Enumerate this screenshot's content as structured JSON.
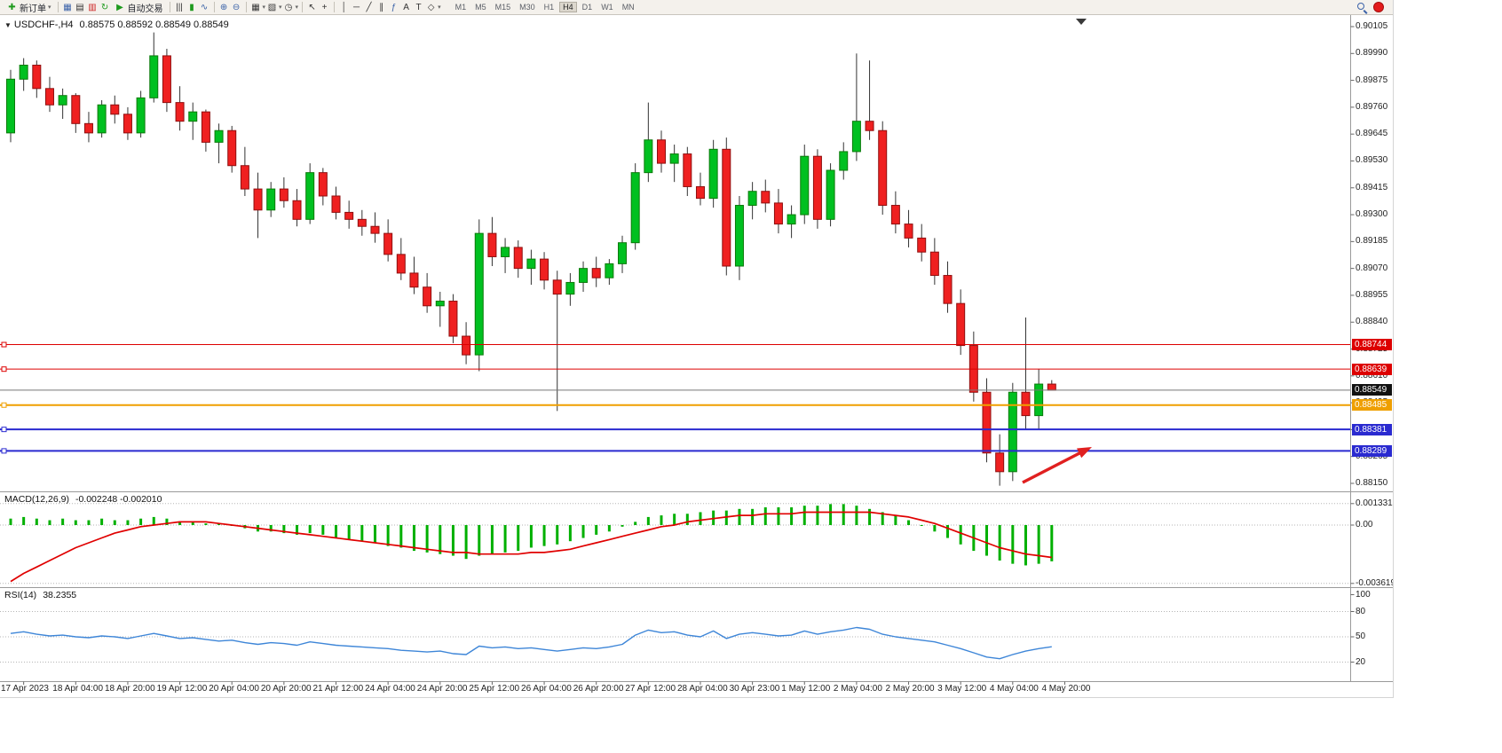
{
  "toolbar": {
    "new_order_label": "新订单",
    "auto_trading_label": "自动交易",
    "timeframes": [
      "M1",
      "M5",
      "M15",
      "M30",
      "H1",
      "H4",
      "D1",
      "W1",
      "MN"
    ],
    "active_timeframe": "H4",
    "icons": {
      "new_order": "✚",
      "dropdown": "▾",
      "charts": "▦",
      "profiles": "▤",
      "market_watch": "▥",
      "refresh": "↻",
      "play": "▶",
      "bar_chart": "|||",
      "candlestick": "▮",
      "line_chart": "∿",
      "zoom_in": "⊕",
      "zoom_out": "⊖",
      "tile_windows": "▦",
      "cascade_windows": "▧",
      "clock": "◷",
      "cursor": "↖",
      "crosshair": "+",
      "vertical_line": "│",
      "horizontal_line": "─",
      "trendline": "╱",
      "channel": "∥",
      "fibonacci": "ƒ",
      "text": "A",
      "text_label": "T",
      "shapes": "◇",
      "symbol_caret": "▼"
    }
  },
  "chart": {
    "symbol_label": "USDCHF-,H4",
    "ohlc_label": "0.88575 0.88592 0.88549 0.88549",
    "price_ticks": [
      "0.90105",
      "0.89990",
      "0.89875",
      "0.89760",
      "0.89645",
      "0.89530",
      "0.89415",
      "0.89300",
      "0.89185",
      "0.89070",
      "0.88955",
      "0.88840",
      "0.88725",
      "0.88610",
      "0.88495",
      "0.88380",
      "0.88265",
      "0.88150"
    ],
    "hlines": [
      {
        "price": 0.88744,
        "label": "0.88744",
        "color": "#dd0000",
        "line_width": 1,
        "current": false
      },
      {
        "price": 0.88639,
        "label": "0.88639",
        "color": "#dd0000",
        "line_width": 1,
        "current": false
      },
      {
        "price": 0.88549,
        "label": "0.88549",
        "color": "#111111",
        "line_width": 1,
        "current": true
      },
      {
        "price": 0.88485,
        "label": "0.88485",
        "color": "#ef9f00",
        "line_width": 2,
        "current": false
      },
      {
        "price": 0.88381,
        "label": "0.88381",
        "color": "#2a2ad0",
        "line_width": 2,
        "current": false
      },
      {
        "price": 0.88289,
        "label": "0.88289",
        "color": "#2a2ad0",
        "line_width": 2,
        "current": false
      }
    ],
    "time_labels": [
      "17 Apr 2023",
      "18 Apr 04:00",
      "18 Apr 20:00",
      "19 Apr 12:00",
      "20 Apr 04:00",
      "20 Apr 20:00",
      "21 Apr 12:00",
      "24 Apr 04:00",
      "24 Apr 20:00",
      "25 Apr 12:00",
      "26 Apr 04:00",
      "26 Apr 20:00",
      "27 Apr 12:00",
      "28 Apr 04:00",
      "30 Apr 23:00",
      "1 May 12:00",
      "2 May 04:00",
      "2 May 20:00",
      "3 May 12:00",
      "4 May 04:00",
      "4 May 20:00"
    ],
    "arrow_color": "#e02020",
    "candle_up_color": "#00c020",
    "candle_down_color": "#ef2020"
  },
  "macd": {
    "label": "MACD(12,26,9)",
    "values_label": "-0.002248 -0.002010",
    "axis": [
      "0.001331",
      "0.00",
      "-0.003619"
    ]
  },
  "rsi": {
    "label": "RSI(14)",
    "value_label": "38.2355",
    "axis": [
      "100",
      "80",
      "50",
      "20"
    ]
  },
  "chart_data": {
    "type": "candlestick",
    "symbol": "USDCHF",
    "timeframe": "H4",
    "price_range": [
      0.8815,
      0.90105
    ],
    "candles": [
      [
        0.8965,
        0.8992,
        0.8961,
        0.8988
      ],
      [
        0.8988,
        0.8997,
        0.8983,
        0.8994
      ],
      [
        0.8994,
        0.8996,
        0.898,
        0.8984
      ],
      [
        0.8984,
        0.8989,
        0.8974,
        0.8977
      ],
      [
        0.8977,
        0.8984,
        0.8971,
        0.8981
      ],
      [
        0.8981,
        0.8982,
        0.8965,
        0.8969
      ],
      [
        0.8969,
        0.8974,
        0.8961,
        0.8965
      ],
      [
        0.8965,
        0.8979,
        0.8963,
        0.8977
      ],
      [
        0.8977,
        0.8981,
        0.8969,
        0.8973
      ],
      [
        0.8973,
        0.8976,
        0.8962,
        0.8965
      ],
      [
        0.8965,
        0.8983,
        0.8963,
        0.898
      ],
      [
        0.898,
        0.9008,
        0.8978,
        0.8998
      ],
      [
        0.8998,
        0.9001,
        0.8974,
        0.8978
      ],
      [
        0.8978,
        0.8985,
        0.8966,
        0.897
      ],
      [
        0.897,
        0.8978,
        0.8962,
        0.8974
      ],
      [
        0.8974,
        0.8975,
        0.8957,
        0.8961
      ],
      [
        0.8961,
        0.8969,
        0.8952,
        0.8966
      ],
      [
        0.8966,
        0.8968,
        0.8948,
        0.8951
      ],
      [
        0.8951,
        0.8959,
        0.8938,
        0.8941
      ],
      [
        0.8941,
        0.8948,
        0.892,
        0.8932
      ],
      [
        0.8932,
        0.8944,
        0.8929,
        0.8941
      ],
      [
        0.8941,
        0.8946,
        0.8933,
        0.8936
      ],
      [
        0.8936,
        0.8941,
        0.8925,
        0.8928
      ],
      [
        0.8928,
        0.8952,
        0.8926,
        0.8948
      ],
      [
        0.8948,
        0.895,
        0.8934,
        0.8938
      ],
      [
        0.8938,
        0.8942,
        0.8928,
        0.8931
      ],
      [
        0.8931,
        0.8936,
        0.8924,
        0.8928
      ],
      [
        0.8928,
        0.8932,
        0.8921,
        0.8925
      ],
      [
        0.8925,
        0.8931,
        0.8918,
        0.8922
      ],
      [
        0.8922,
        0.8928,
        0.891,
        0.8913
      ],
      [
        0.8913,
        0.892,
        0.8902,
        0.8905
      ],
      [
        0.8905,
        0.8912,
        0.8896,
        0.8899
      ],
      [
        0.8899,
        0.8905,
        0.8888,
        0.8891
      ],
      [
        0.8891,
        0.8897,
        0.8882,
        0.8893
      ],
      [
        0.8893,
        0.8896,
        0.8875,
        0.8878
      ],
      [
        0.8878,
        0.8884,
        0.8866,
        0.887
      ],
      [
        0.887,
        0.8928,
        0.8863,
        0.8922
      ],
      [
        0.8922,
        0.8929,
        0.8908,
        0.8912
      ],
      [
        0.8912,
        0.892,
        0.8905,
        0.8916
      ],
      [
        0.8916,
        0.8919,
        0.8903,
        0.8907
      ],
      [
        0.8907,
        0.8915,
        0.89,
        0.8911
      ],
      [
        0.8911,
        0.8914,
        0.8898,
        0.8902
      ],
      [
        0.8902,
        0.8906,
        0.8846,
        0.8896
      ],
      [
        0.8896,
        0.8905,
        0.8891,
        0.8901
      ],
      [
        0.8901,
        0.891,
        0.8897,
        0.8907
      ],
      [
        0.8907,
        0.8912,
        0.8899,
        0.8903
      ],
      [
        0.8903,
        0.8911,
        0.89,
        0.8909
      ],
      [
        0.8909,
        0.8921,
        0.8905,
        0.8918
      ],
      [
        0.8918,
        0.8952,
        0.8915,
        0.8948
      ],
      [
        0.8948,
        0.8978,
        0.8944,
        0.8962
      ],
      [
        0.8962,
        0.8966,
        0.8948,
        0.8952
      ],
      [
        0.8952,
        0.896,
        0.8944,
        0.8956
      ],
      [
        0.8956,
        0.8959,
        0.8938,
        0.8942
      ],
      [
        0.8942,
        0.8948,
        0.8934,
        0.8937
      ],
      [
        0.8937,
        0.8962,
        0.8933,
        0.8958
      ],
      [
        0.8958,
        0.8963,
        0.8904,
        0.8908
      ],
      [
        0.8908,
        0.8938,
        0.8902,
        0.8934
      ],
      [
        0.8934,
        0.8944,
        0.8928,
        0.894
      ],
      [
        0.894,
        0.8945,
        0.8931,
        0.8935
      ],
      [
        0.8935,
        0.8941,
        0.8922,
        0.8926
      ],
      [
        0.8926,
        0.8934,
        0.892,
        0.893
      ],
      [
        0.893,
        0.896,
        0.8926,
        0.8955
      ],
      [
        0.8955,
        0.8958,
        0.8924,
        0.8928
      ],
      [
        0.8928,
        0.8952,
        0.8925,
        0.8949
      ],
      [
        0.8949,
        0.8961,
        0.8945,
        0.8957
      ],
      [
        0.8957,
        0.8999,
        0.8953,
        0.897
      ],
      [
        0.897,
        0.8996,
        0.8962,
        0.8966
      ],
      [
        0.8966,
        0.897,
        0.893,
        0.8934
      ],
      [
        0.8934,
        0.894,
        0.8922,
        0.8926
      ],
      [
        0.8926,
        0.8932,
        0.8916,
        0.892
      ],
      [
        0.892,
        0.8926,
        0.891,
        0.8914
      ],
      [
        0.8914,
        0.892,
        0.89,
        0.8904
      ],
      [
        0.8904,
        0.891,
        0.8888,
        0.8892
      ],
      [
        0.8892,
        0.8898,
        0.887,
        0.8874
      ],
      [
        0.8874,
        0.888,
        0.885,
        0.8854
      ],
      [
        0.8854,
        0.886,
        0.8824,
        0.8828
      ],
      [
        0.8828,
        0.8836,
        0.8814,
        0.882
      ],
      [
        0.882,
        0.8858,
        0.8816,
        0.8854
      ],
      [
        0.8854,
        0.8886,
        0.8838,
        0.8844
      ],
      [
        0.8844,
        0.8864,
        0.8838,
        0.88575
      ],
      [
        0.88575,
        0.88592,
        0.88549,
        0.88549
      ]
    ],
    "macd": {
      "histogram": [
        0.0004,
        0.0005,
        0.0004,
        0.0003,
        0.0004,
        0.0003,
        0.0003,
        0.0004,
        0.0003,
        0.0003,
        0.0004,
        0.0005,
        0.0004,
        0.0002,
        0.0002,
        0.0001,
        0.0001,
        0.0,
        -0.0002,
        -0.0004,
        -0.0004,
        -0.0005,
        -0.0006,
        -0.0005,
        -0.0006,
        -0.0008,
        -0.0009,
        -0.001,
        -0.0011,
        -0.0013,
        -0.0014,
        -0.0016,
        -0.0017,
        -0.0018,
        -0.0019,
        -0.0021,
        -0.0019,
        -0.0018,
        -0.0017,
        -0.0016,
        -0.0014,
        -0.0013,
        -0.0012,
        -0.001,
        -0.0008,
        -0.0006,
        -0.0004,
        -0.0001,
        0.0002,
        0.0005,
        0.0006,
        0.0007,
        0.0007,
        0.0008,
        0.0009,
        0.0009,
        0.001,
        0.001,
        0.0011,
        0.0011,
        0.0011,
        0.0012,
        0.0012,
        0.0013,
        0.0013,
        0.0012,
        0.001,
        0.0008,
        0.0006,
        0.0003,
        0.0,
        -0.0004,
        -0.0008,
        -0.0012,
        -0.0016,
        -0.0019,
        -0.0022,
        -0.0024,
        -0.0025,
        -0.0024,
        -0.002248
      ],
      "signal": [
        -0.0035,
        -0.003,
        -0.0026,
        -0.0022,
        -0.0018,
        -0.0014,
        -0.0011,
        -0.0008,
        -0.0005,
        -0.0003,
        -0.0001,
        0.0,
        0.0001,
        0.0002,
        0.0002,
        0.0002,
        0.0001,
        0.0,
        -0.0001,
        -0.0002,
        -0.0003,
        -0.0004,
        -0.0005,
        -0.0006,
        -0.0007,
        -0.0008,
        -0.0009,
        -0.001,
        -0.0011,
        -0.0012,
        -0.0013,
        -0.0014,
        -0.0015,
        -0.0016,
        -0.0017,
        -0.0017,
        -0.0018,
        -0.0018,
        -0.0018,
        -0.0018,
        -0.0017,
        -0.0017,
        -0.0016,
        -0.0015,
        -0.0013,
        -0.0011,
        -0.0009,
        -0.0007,
        -0.0005,
        -0.0003,
        -0.0001,
        0.0,
        0.0002,
        0.0003,
        0.0004,
        0.0005,
        0.0006,
        0.0006,
        0.0007,
        0.0007,
        0.0007,
        0.0008,
        0.0008,
        0.0008,
        0.0008,
        0.0008,
        0.0008,
        0.0007,
        0.0006,
        0.0005,
        0.0003,
        0.0001,
        -0.0002,
        -0.0005,
        -0.0008,
        -0.0011,
        -0.0014,
        -0.0016,
        -0.0018,
        -0.0019,
        -0.00201
      ]
    },
    "rsi": [
      54,
      56,
      53,
      51,
      52,
      50,
      49,
      51,
      50,
      48,
      51,
      54,
      51,
      48,
      49,
      47,
      45,
      46,
      43,
      41,
      43,
      42,
      40,
      44,
      42,
      40,
      39,
      38,
      37,
      36,
      34,
      33,
      32,
      33,
      30,
      29,
      39,
      37,
      38,
      36,
      37,
      35,
      33,
      35,
      37,
      36,
      38,
      41,
      52,
      58,
      55,
      56,
      52,
      50,
      57,
      48,
      53,
      55,
      53,
      51,
      52,
      57,
      53,
      56,
      58,
      61,
      59,
      53,
      50,
      48,
      46,
      44,
      40,
      36,
      31,
      26,
      24,
      29,
      33,
      36,
      38.24
    ],
    "hlines": [
      0.88744,
      0.88639,
      0.88549,
      0.88485,
      0.88381,
      0.88289
    ]
  }
}
